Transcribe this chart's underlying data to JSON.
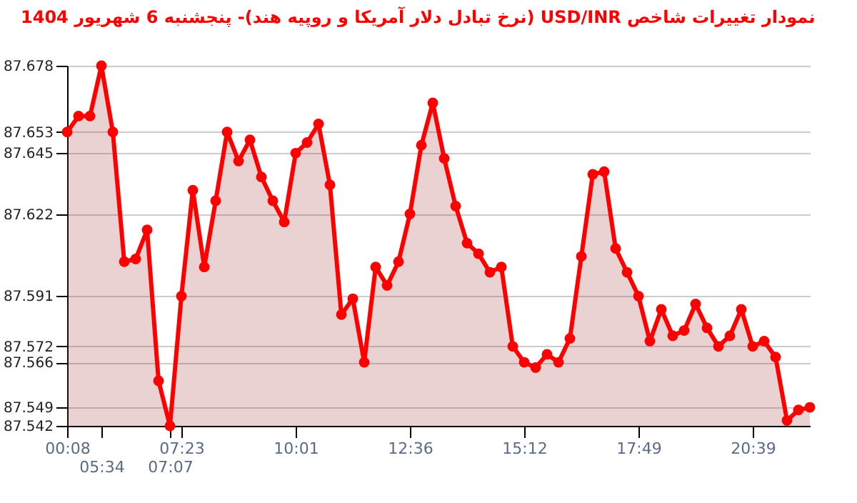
{
  "chart_data": {
    "type": "area",
    "title": "نمودار تغییرات شاخص USD/INR (نرخ تبادل دلار آمریکا و روپیه هند)- پنجشنبه 6 شهریور 1404",
    "categories": [
      "00:08",
      null,
      null,
      "05:34",
      null,
      null,
      null,
      null,
      null,
      "07:07",
      "07:23",
      null,
      null,
      null,
      null,
      null,
      null,
      null,
      null,
      null,
      "10:01",
      null,
      null,
      null,
      null,
      null,
      null,
      null,
      null,
      null,
      "12:36",
      null,
      null,
      null,
      null,
      null,
      null,
      null,
      null,
      null,
      "15:12",
      null,
      null,
      null,
      null,
      null,
      null,
      null,
      null,
      null,
      "17:49",
      null,
      null,
      null,
      null,
      null,
      null,
      null,
      null,
      null,
      "20:39",
      null,
      null,
      null,
      null,
      null
    ],
    "series": [
      {
        "color": "#ff0000",
        "values": [
          87.653,
          87.659,
          87.659,
          87.678,
          87.653,
          87.604,
          87.605,
          87.616,
          87.559,
          87.542,
          87.591,
          87.631,
          87.602,
          87.627,
          87.653,
          87.642,
          87.65,
          87.636,
          87.627,
          87.619,
          87.645,
          87.649,
          87.656,
          87.633,
          87.584,
          87.59,
          87.566,
          87.602,
          87.595,
          87.604,
          87.622,
          87.648,
          87.664,
          87.643,
          87.625,
          87.611,
          87.607,
          87.6,
          87.602,
          87.572,
          87.566,
          87.564,
          87.569,
          87.566,
          87.575,
          87.606,
          87.637,
          87.638,
          87.609,
          87.6,
          87.591,
          87.574,
          87.586,
          87.576,
          87.578,
          87.588,
          87.579,
          87.572,
          87.576,
          87.586,
          87.572,
          87.574,
          87.568,
          87.544,
          87.548,
          87.549
        ]
      }
    ],
    "ylim": [
      87.542,
      87.678
    ],
    "yticks": [
      87.542,
      87.549,
      87.566,
      87.572,
      87.591,
      87.622,
      87.645,
      87.653,
      87.678
    ],
    "grid": "y",
    "marker": "circle",
    "line_style": "solid"
  }
}
